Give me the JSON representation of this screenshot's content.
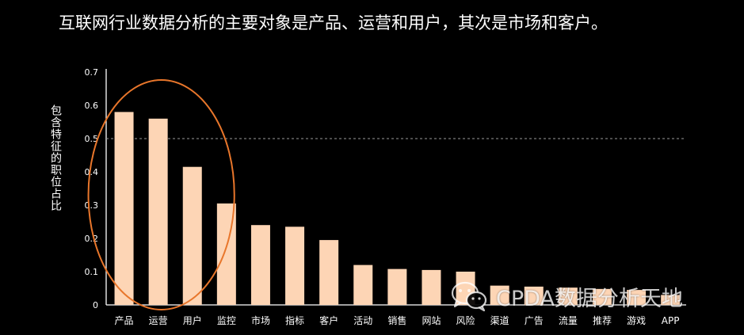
{
  "header": {
    "title": "互联网行业数据分析的主要对象是产品、运营和用户，其次是市场和客户。"
  },
  "watermark": {
    "icon": "wechat-icon",
    "text": "CPDA数据分析天地"
  },
  "chart_data": {
    "type": "bar",
    "title": "",
    "xlabel": "",
    "ylabel": "包含特征的职位占比",
    "ylim": [
      0,
      0.7
    ],
    "yticks": [
      "0",
      "0.1",
      "0.2",
      "0.3",
      "0.4",
      "0.5",
      "0.6",
      "0.7"
    ],
    "reference_line": 0.5,
    "grid": false,
    "categories": [
      "产品",
      "运营",
      "用户",
      "监控",
      "市场",
      "指标",
      "客户",
      "活动",
      "销售",
      "网站",
      "风险",
      "渠道",
      "广告",
      "流量",
      "推荐",
      "游戏",
      "APP"
    ],
    "values": [
      0.58,
      0.56,
      0.415,
      0.305,
      0.24,
      0.235,
      0.195,
      0.12,
      0.108,
      0.105,
      0.1,
      0.058,
      0.055,
      0.052,
      0.048,
      0.045,
      0.03
    ],
    "highlight": [
      "产品",
      "运营",
      "用户"
    ],
    "colors": {
      "bar": "#fdd5b5",
      "axis": "#ffffff",
      "reference": "#9a9a9a",
      "highlight_ring": "#e8762b",
      "text": "#ffffff"
    }
  }
}
